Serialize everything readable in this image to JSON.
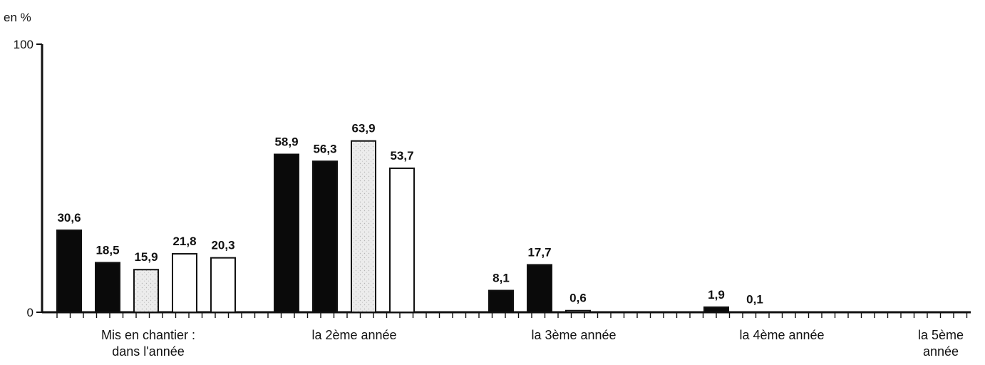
{
  "chart_data": {
    "type": "bar",
    "ylabel": "en %",
    "ylim": [
      0,
      100
    ],
    "yticks": [
      0,
      100
    ],
    "ytick_labels": [
      "0",
      "100"
    ],
    "categories": [
      [
        "Mis en chantier :",
        "dans l'année"
      ],
      [
        "la 2ème année"
      ],
      [
        "la 3ème année"
      ],
      [
        "la 4ème année"
      ],
      [
        "la 5ème",
        "année"
      ]
    ],
    "groups": [
      {
        "bars": [
          {
            "value": 30.6,
            "label": "30,6",
            "fill": "black"
          },
          {
            "value": 18.5,
            "label": "18,5",
            "fill": "black"
          },
          {
            "value": 15.9,
            "label": "15,9",
            "fill": "stipple"
          },
          {
            "value": 21.8,
            "label": "21,8",
            "fill": "white"
          },
          {
            "value": 20.3,
            "label": "20,3",
            "fill": "white"
          }
        ]
      },
      {
        "bars": [
          {
            "value": 58.9,
            "label": "58,9",
            "fill": "black"
          },
          {
            "value": 56.3,
            "label": "56,3",
            "fill": "black"
          },
          {
            "value": 63.9,
            "label": "63,9",
            "fill": "stipple"
          },
          {
            "value": 53.7,
            "label": "53,7",
            "fill": "white"
          }
        ]
      },
      {
        "bars": [
          {
            "value": 8.1,
            "label": "8,1",
            "fill": "black"
          },
          {
            "value": 17.7,
            "label": "17,7",
            "fill": "black"
          },
          {
            "value": 0.6,
            "label": "0,6",
            "fill": "white"
          }
        ]
      },
      {
        "bars": [
          {
            "value": 1.9,
            "label": "1,9",
            "fill": "black"
          },
          {
            "value": 0.1,
            "label": "0,1",
            "fill": "black"
          }
        ]
      },
      {
        "bars": []
      }
    ],
    "colors": {
      "black": "#0a0a0a",
      "stipple": "#e2e2e2",
      "white": "#ffffff",
      "axis": "#111111"
    },
    "grid": false,
    "legend": "none"
  }
}
